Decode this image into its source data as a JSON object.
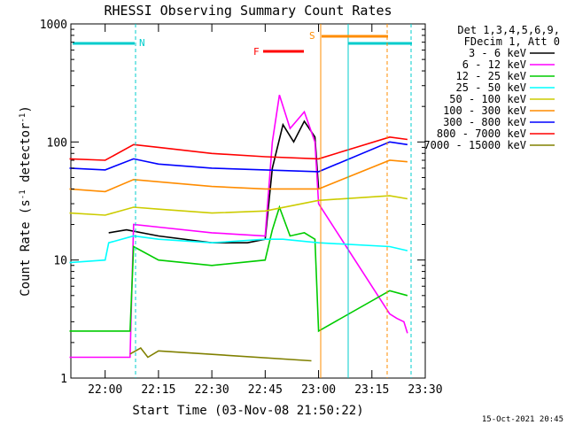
{
  "chart_data": {
    "type": "line",
    "title": "RHESSI Observing Summary Count Rates",
    "xlabel": "Start Time (03-Nov-08 21:50:22)",
    "ylabel_prefix": "Count Rate (s",
    "ylabel_sup": "-1",
    "ylabel_suffix": " detector",
    "ylabel_end": ")",
    "y_scale": "log",
    "ylim": [
      1,
      1000
    ],
    "xlim": [
      "21:50:22",
      "23:30:00"
    ],
    "x_ticks": [
      "22:00",
      "22:15",
      "22:30",
      "22:45",
      "23:00",
      "23:15",
      "23:30"
    ],
    "y_ticks": [
      "1",
      "10",
      "100",
      "1000"
    ],
    "legend_header": [
      "Det 1,3,4,5,6,9,",
      "FDecim 1, Att 0"
    ],
    "legend_position": "right",
    "date_stamp": "15-Oct-2021 20:45",
    "series": [
      {
        "name": "3 - 6 keV",
        "color": "#000000",
        "x": [
          "22:01",
          "22:06",
          "22:15",
          "22:30",
          "22:40",
          "22:45",
          "22:47",
          "22:50",
          "22:53",
          "22:56",
          "22:59",
          "23:00"
        ],
        "values": [
          17,
          18,
          16,
          14,
          14,
          15,
          60,
          140,
          100,
          150,
          110,
          40
        ]
      },
      {
        "name": "6 - 12 keV",
        "color": "#ff00ff",
        "x": [
          "21:50",
          "22:07",
          "22:08",
          "22:15",
          "22:30",
          "22:45",
          "22:47",
          "22:49",
          "22:52",
          "22:56",
          "22:59",
          "23:00",
          "23:20",
          "23:22",
          "23:24",
          "23:25"
        ],
        "values": [
          1.5,
          1.5,
          20,
          19,
          17,
          16,
          100,
          250,
          130,
          180,
          100,
          30,
          3.5,
          3.2,
          3.0,
          2.4
        ]
      },
      {
        "name": "12 - 25 keV",
        "color": "#00cc00",
        "x": [
          "21:50",
          "22:07",
          "22:08",
          "22:15",
          "22:30",
          "22:45",
          "22:47",
          "22:49",
          "22:52",
          "22:56",
          "22:59",
          "23:00",
          "23:20",
          "23:25"
        ],
        "values": [
          2.5,
          2.5,
          13,
          10,
          9,
          10,
          18,
          28,
          16,
          17,
          15,
          2.5,
          5.5,
          5.0
        ]
      },
      {
        "name": "25 - 50 keV",
        "color": "#00ffff",
        "x": [
          "21:50",
          "22:00",
          "22:01",
          "22:08",
          "22:15",
          "22:30",
          "22:45",
          "22:50",
          "23:00",
          "23:20",
          "23:25"
        ],
        "values": [
          9.5,
          10,
          14,
          16,
          15,
          14,
          15,
          15,
          14,
          13,
          12
        ]
      },
      {
        "name": "50 - 100 keV",
        "color": "#cccc00",
        "x": [
          "21:50",
          "22:00",
          "22:08",
          "22:15",
          "22:30",
          "22:45",
          "23:00",
          "23:20",
          "23:25"
        ],
        "values": [
          25,
          24,
          28,
          27,
          25,
          26,
          32,
          35,
          33
        ]
      },
      {
        "name": "100 - 300 keV",
        "color": "#ff8c00",
        "x": [
          "21:50",
          "22:00",
          "22:08",
          "22:15",
          "22:30",
          "22:45",
          "23:00",
          "23:20",
          "23:25"
        ],
        "values": [
          40,
          38,
          48,
          46,
          42,
          40,
          40,
          70,
          68
        ]
      },
      {
        "name": "300 - 800 keV",
        "color": "#0000ff",
        "x": [
          "21:50",
          "22:00",
          "22:08",
          "22:15",
          "22:30",
          "22:45",
          "23:00",
          "23:20",
          "23:25"
        ],
        "values": [
          60,
          58,
          72,
          65,
          60,
          58,
          56,
          100,
          95
        ]
      },
      {
        "name": "800 - 7000 keV",
        "color": "#ff0000",
        "x": [
          "21:50",
          "22:00",
          "22:08",
          "22:15",
          "22:30",
          "22:45",
          "23:00",
          "23:20",
          "23:25"
        ],
        "values": [
          72,
          70,
          95,
          90,
          80,
          75,
          72,
          110,
          105
        ]
      },
      {
        "name": "7000 - 15000 keV",
        "color": "#808000",
        "x": [
          "22:07",
          "22:10",
          "22:12",
          "22:15",
          "22:58"
        ],
        "values": [
          1.6,
          1.8,
          1.5,
          1.7,
          1.4
        ]
      }
    ],
    "annotations": [
      {
        "label": "N",
        "color": "#00cccc"
      },
      {
        "label": "F",
        "color": "#ff0000"
      },
      {
        "label": "S",
        "color": "#ff8c00"
      }
    ],
    "grid": false
  }
}
